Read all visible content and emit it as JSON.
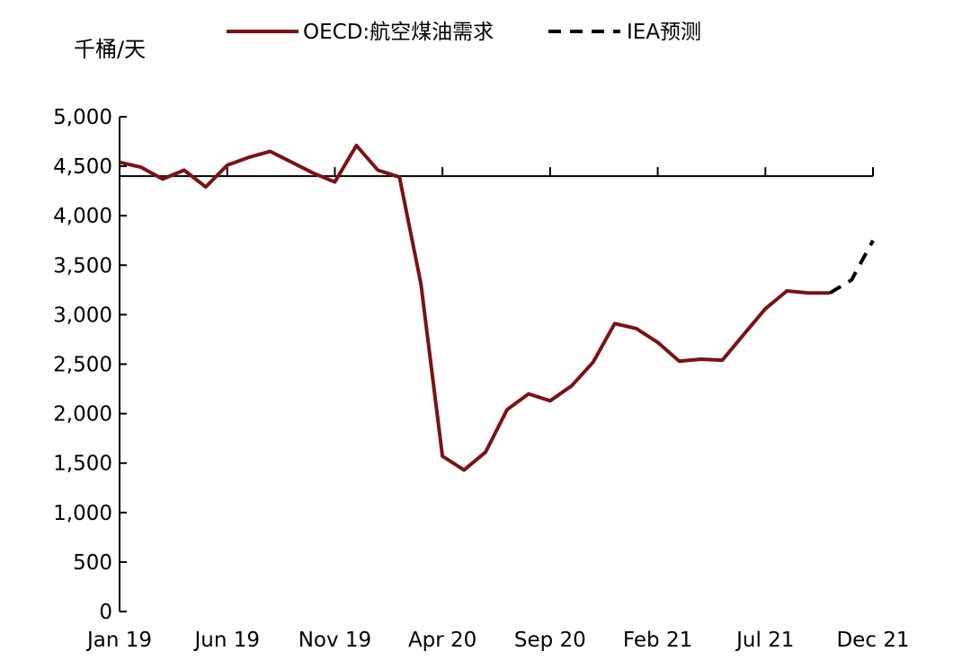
{
  "chart_data": {
    "type": "line",
    "title": "",
    "xlabel": "",
    "ylabel": "千桶/天",
    "ylim": [
      0,
      5000
    ],
    "yticks": [
      0,
      500,
      1000,
      1500,
      2000,
      2500,
      3000,
      3500,
      4000,
      4500,
      5000
    ],
    "ytick_labels": [
      "0",
      "500",
      "1,000",
      "1,500",
      "2,000",
      "2,500",
      "3,000",
      "3,500",
      "4,000",
      "4,500",
      "5,000"
    ],
    "x_tick_labels": [
      "Jan 19",
      "Jun 19",
      "Nov 19",
      "Apr 20",
      "Sep 20",
      "Feb 21",
      "Jul 21",
      "Dec 21"
    ],
    "x_categories": [
      "Jan 19",
      "Feb 19",
      "Mar 19",
      "Apr 19",
      "May 19",
      "Jun 19",
      "Jul 19",
      "Aug 19",
      "Sep 19",
      "Oct 19",
      "Nov 19",
      "Dec 19",
      "Jan 20",
      "Feb 20",
      "Mar 20",
      "Apr 20",
      "May 20",
      "Jun 20",
      "Jul 20",
      "Aug 20",
      "Sep 20",
      "Oct 20",
      "Nov 20",
      "Dec 20",
      "Jan 21",
      "Feb 21",
      "Mar 21",
      "Apr 21",
      "May 21",
      "Jun 21",
      "Jul 21",
      "Aug 21",
      "Sep 21",
      "Oct 21",
      "Nov 21",
      "Dec 21"
    ],
    "reference_line": {
      "y": 4400
    },
    "grid": false,
    "legend": "top",
    "series": [
      {
        "name": "OECD:航空煤油需求",
        "color": "#7b1216",
        "style": "solid",
        "values": [
          4540,
          4490,
          4370,
          4460,
          4290,
          4510,
          4590,
          4650,
          4540,
          4430,
          4340,
          4710,
          4460,
          4390,
          3310,
          1570,
          1430,
          1610,
          2040,
          2200,
          2130,
          2280,
          2520,
          2910,
          2860,
          2720,
          2530,
          2550,
          2540,
          2800,
          3060,
          3240,
          3220,
          3220,
          null,
          null
        ]
      },
      {
        "name": "IEA预测",
        "color": "#000000",
        "style": "dashed",
        "values": [
          null,
          null,
          null,
          null,
          null,
          null,
          null,
          null,
          null,
          null,
          null,
          null,
          null,
          null,
          null,
          null,
          null,
          null,
          null,
          null,
          null,
          null,
          null,
          null,
          null,
          null,
          null,
          null,
          null,
          null,
          null,
          null,
          null,
          3220,
          3350,
          3750
        ]
      }
    ]
  }
}
